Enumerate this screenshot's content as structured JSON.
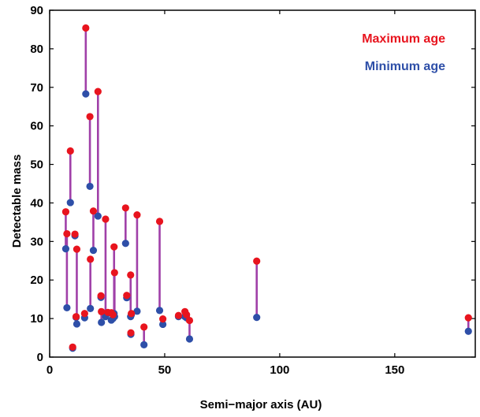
{
  "chart_data": {
    "type": "scatter",
    "title": "",
    "xlabel": "Semi−major axis (AU)",
    "ylabel": "Detectable mass",
    "xlim": [
      0,
      185
    ],
    "ylim": [
      0,
      90
    ],
    "xticks": [
      "0",
      "50",
      "100",
      "150"
    ],
    "yticks": [
      "0",
      "10",
      "20",
      "30",
      "40",
      "50",
      "60",
      "70",
      "80",
      "90"
    ],
    "grid": false,
    "legend_placement": "top-right",
    "colors": {
      "max": "#e8141e",
      "min": "#2e4fa8",
      "connector": "#a040a8"
    },
    "series": [
      {
        "name": "Maximum age",
        "color": "#e8141e"
      },
      {
        "name": "Minimum age",
        "color": "#2e4fa8"
      }
    ],
    "points": [
      {
        "x": 7.0,
        "max": 37.7,
        "min": 28.1
      },
      {
        "x": 7.5,
        "max": 32.0,
        "min": 12.8
      },
      {
        "x": 9.0,
        "max": 53.5,
        "min": 40.1
      },
      {
        "x": 10.0,
        "max": 2.6,
        "min": 2.3
      },
      {
        "x": 11.0,
        "max": 31.9,
        "min": 31.5
      },
      {
        "x": 11.8,
        "max": 28.0,
        "min": 8.6
      },
      {
        "x": 11.5,
        "max": 10.5,
        "min": 10.3
      },
      {
        "x": 15.7,
        "max": 85.4,
        "min": 68.3
      },
      {
        "x": 15.2,
        "max": 11.3,
        "min": 10.2
      },
      {
        "x": 17.5,
        "max": 62.4,
        "min": 44.3
      },
      {
        "x": 17.7,
        "max": 25.4,
        "min": 12.6
      },
      {
        "x": 19.0,
        "max": 37.9,
        "min": 27.7
      },
      {
        "x": 21.0,
        "max": 68.9,
        "min": 36.6
      },
      {
        "x": 22.3,
        "max": 15.9,
        "min": 15.5
      },
      {
        "x": 22.5,
        "max": 11.8,
        "min": 9.0
      },
      {
        "x": 24.3,
        "max": 35.8,
        "min": 10.5
      },
      {
        "x": 25.3,
        "max": 11.6,
        "min": 11.4
      },
      {
        "x": 26.8,
        "max": 11.5,
        "min": 9.6
      },
      {
        "x": 27.5,
        "max": 11.0,
        "min": 10.0
      },
      {
        "x": 28.0,
        "max": 28.6,
        "min": 11.3
      },
      {
        "x": 28.2,
        "max": 21.9,
        "min": 10.5
      },
      {
        "x": 33.0,
        "max": 38.7,
        "min": 29.5
      },
      {
        "x": 33.5,
        "max": 16.0,
        "min": 15.4
      },
      {
        "x": 35.2,
        "max": 21.3,
        "min": 10.5
      },
      {
        "x": 35.5,
        "max": 11.3,
        "min": 11.0
      },
      {
        "x": 35.3,
        "max": 6.3,
        "min": 5.9
      },
      {
        "x": 38.0,
        "max": 36.9,
        "min": 11.9
      },
      {
        "x": 41.0,
        "max": 7.8,
        "min": 3.2
      },
      {
        "x": 47.8,
        "max": 35.2,
        "min": 12.1
      },
      {
        "x": 49.2,
        "max": 9.9,
        "min": 8.5
      },
      {
        "x": 56.0,
        "max": 10.8,
        "min": 10.5
      },
      {
        "x": 58.8,
        "max": 11.8,
        "min": 10.5
      },
      {
        "x": 59.5,
        "max": 11.0,
        "min": 10.2
      },
      {
        "x": 60.8,
        "max": 9.5,
        "min": 4.7
      },
      {
        "x": 90.0,
        "max": 24.9,
        "min": 10.3
      },
      {
        "x": 182.0,
        "max": 10.2,
        "min": 6.7
      }
    ]
  }
}
